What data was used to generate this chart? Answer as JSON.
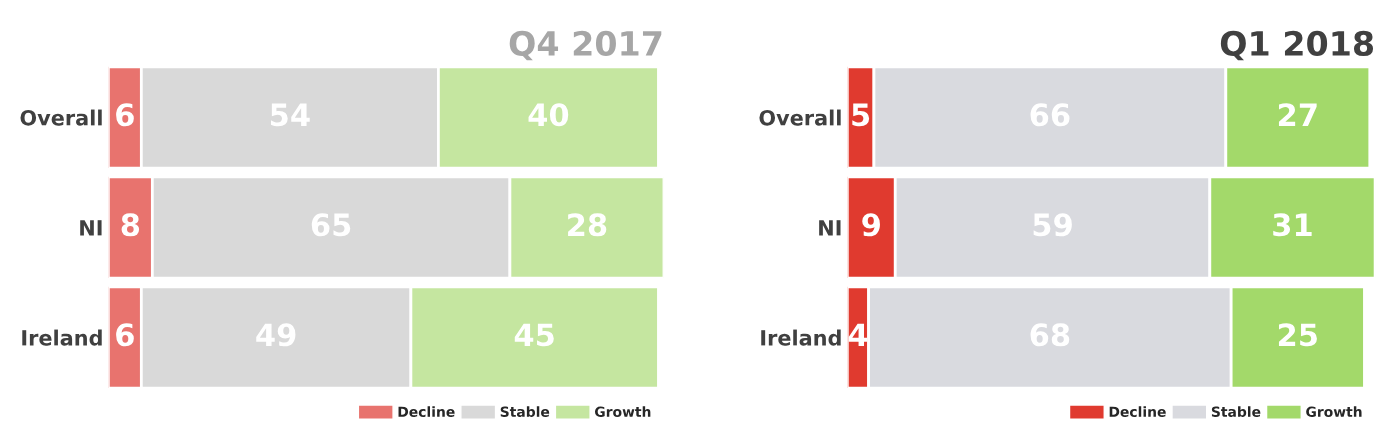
{
  "chart_data": [
    {
      "type": "bar",
      "title": "Q4 2017",
      "orientation": "horizontal",
      "stacked": true,
      "data_labels": true,
      "legend": "bottom right",
      "grid": false,
      "tick_labels": "y",
      "categories": [
        "Overall",
        "NI",
        "Ireland"
      ],
      "series": [
        {
          "name": "Decline",
          "color": "#e8736e",
          "values": [
            6,
            8,
            6
          ]
        },
        {
          "name": "Stable",
          "color": "#d9d9d9",
          "values": [
            54,
            65,
            49
          ]
        },
        {
          "name": "Growth",
          "color": "#c5e6a0",
          "values": [
            40,
            28,
            45
          ]
        }
      ]
    },
    {
      "type": "bar",
      "title": "Q1 2018",
      "orientation": "horizontal",
      "stacked": true,
      "data_labels": true,
      "legend": "bottom right",
      "grid": false,
      "tick_labels": "y",
      "categories": [
        "Overall",
        "NI",
        "Ireland"
      ],
      "series": [
        {
          "name": "Decline",
          "color": "#e03a2f",
          "values": [
            5,
            9,
            4
          ]
        },
        {
          "name": "Stable",
          "color": "#d9dadf",
          "values": [
            66,
            59,
            68
          ]
        },
        {
          "name": "Growth",
          "color": "#a3d96a",
          "values": [
            27,
            31,
            25
          ]
        }
      ]
    }
  ]
}
